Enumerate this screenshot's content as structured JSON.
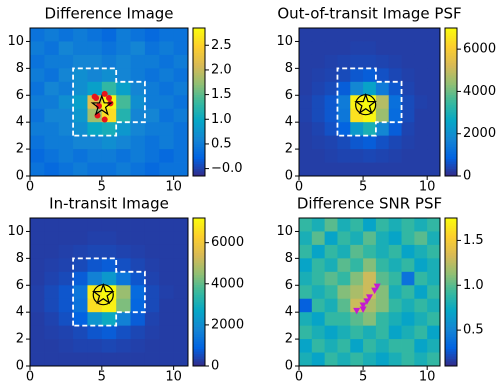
{
  "chart_data": [
    {
      "type": "heatmap",
      "title": "Difference Image",
      "colormap": "parula",
      "xlim": [
        0,
        11
      ],
      "ylim": [
        0,
        11
      ],
      "xticks": [
        0,
        5,
        10
      ],
      "yticks": [
        0,
        2,
        4,
        6,
        8,
        10
      ],
      "clim": [
        -0.15,
        2.85
      ],
      "cticks": [
        {
          "value": 0,
          "label": "−0.0"
        },
        0.5,
        {
          "value": 1,
          "label": "1.0"
        },
        1.5,
        {
          "value": 2,
          "label": "2.0"
        },
        2.5
      ],
      "z": [
        [
          0.4,
          0.5,
          0.4,
          0.5,
          0.4,
          0.3,
          0.5,
          0.4,
          0.3,
          0.4,
          0.4
        ],
        [
          0.5,
          0.4,
          0.6,
          0.5,
          0.5,
          0.4,
          0.5,
          0.6,
          0.4,
          0.5,
          0.4
        ],
        [
          0.4,
          0.5,
          0.5,
          0.6,
          0.6,
          0.5,
          0.6,
          0.5,
          0.5,
          0.4,
          0.5
        ],
        [
          0.5,
          0.4,
          0.6,
          0.7,
          0.6,
          0.7,
          0.6,
          0.5,
          0.4,
          0.5,
          0.4
        ],
        [
          0.4,
          0.6,
          0.5,
          0.7,
          0.9,
          1.3,
          0.9,
          0.6,
          0.5,
          0.4,
          0.5
        ],
        [
          0.5,
          0.5,
          0.7,
          0.9,
          2.2,
          2.8,
          1.4,
          0.7,
          0.5,
          0.5,
          0.4
        ],
        [
          0.4,
          0.6,
          0.6,
          0.8,
          1.8,
          2.6,
          1.2,
          0.6,
          0.6,
          0.4,
          0.5
        ],
        [
          0.5,
          0.5,
          0.6,
          0.7,
          1.0,
          1.1,
          0.8,
          0.6,
          0.5,
          0.5,
          0.4
        ],
        [
          0.4,
          0.5,
          0.5,
          0.6,
          0.6,
          0.7,
          0.6,
          0.5,
          0.4,
          0.5,
          0.4
        ],
        [
          0.3,
          0.4,
          0.5,
          0.4,
          0.5,
          0.5,
          0.4,
          0.5,
          0.4,
          0.3,
          0.4
        ],
        [
          0.4,
          0.3,
          0.4,
          0.5,
          0.4,
          0.4,
          0.5,
          0.4,
          0.3,
          0.4,
          0.4
        ]
      ],
      "aperture": {
        "x": [
          3,
          3,
          6,
          6,
          8,
          8,
          6,
          6,
          3
        ],
        "y": [
          3,
          8,
          8,
          7,
          7,
          4,
          4,
          3,
          3
        ]
      },
      "points": {
        "x": [
          4.6,
          5.2,
          4.8,
          5.6,
          4.7,
          5.2,
          5.5,
          4.5
        ],
        "y": [
          5.8,
          6.1,
          5.2,
          5.4,
          4.5,
          4.2,
          5.8,
          5.9
        ],
        "color": "#e8141b",
        "marker": "circle"
      },
      "star": {
        "x": 5,
        "y": 5.2
      }
    },
    {
      "type": "heatmap",
      "title": "Out-of-transit Image PSF",
      "colormap": "parula",
      "xlim": [
        0,
        11
      ],
      "ylim": [
        0,
        11
      ],
      "xticks": [
        0,
        5,
        10
      ],
      "yticks": [
        0,
        2,
        4,
        6,
        8,
        10
      ],
      "clim": [
        0,
        7000
      ],
      "cticks": [
        0,
        2000,
        4000,
        6000
      ],
      "z": [
        [
          300,
          300,
          300,
          300,
          300,
          300,
          300,
          300,
          300,
          300,
          300
        ],
        [
          300,
          300,
          300,
          300,
          350,
          350,
          300,
          300,
          300,
          300,
          300
        ],
        [
          300,
          300,
          350,
          400,
          450,
          450,
          400,
          350,
          300,
          300,
          300
        ],
        [
          300,
          350,
          400,
          500,
          700,
          800,
          600,
          450,
          350,
          300,
          300
        ],
        [
          300,
          400,
          500,
          800,
          1800,
          2500,
          1500,
          700,
          400,
          300,
          300
        ],
        [
          350,
          500,
          700,
          1500,
          6800,
          7000,
          4800,
          1200,
          500,
          350,
          300
        ],
        [
          350,
          500,
          700,
          1400,
          6500,
          6900,
          4500,
          1100,
          500,
          300,
          300
        ],
        [
          300,
          400,
          600,
          900,
          2300,
          3000,
          1800,
          800,
          400,
          300,
          300
        ],
        [
          300,
          350,
          400,
          500,
          700,
          800,
          600,
          450,
          350,
          300,
          300
        ],
        [
          300,
          300,
          350,
          400,
          400,
          450,
          400,
          350,
          300,
          300,
          300
        ],
        [
          300,
          300,
          300,
          300,
          300,
          300,
          300,
          300,
          300,
          300,
          300
        ]
      ],
      "aperture": {
        "x": [
          3,
          3,
          6,
          6,
          8,
          8,
          6,
          6,
          3
        ],
        "y": [
          3,
          8,
          8,
          7,
          7,
          4,
          4,
          3,
          3
        ]
      },
      "star": {
        "x": 5.2,
        "y": 5.3
      }
    },
    {
      "type": "heatmap",
      "title": "In-transit Image",
      "colormap": "parula",
      "xlim": [
        0,
        11
      ],
      "ylim": [
        0,
        11
      ],
      "xticks": [
        0,
        5,
        10
      ],
      "yticks": [
        0,
        2,
        4,
        6,
        8,
        10
      ],
      "clim": [
        0,
        7200
      ],
      "cticks": [
        0,
        2000,
        4000,
        6000
      ],
      "z": [
        [
          300,
          300,
          300,
          300,
          300,
          300,
          300,
          300,
          300,
          300,
          300
        ],
        [
          300,
          300,
          300,
          300,
          350,
          350,
          300,
          300,
          300,
          300,
          300
        ],
        [
          300,
          300,
          350,
          400,
          450,
          450,
          400,
          350,
          300,
          300,
          300
        ],
        [
          300,
          350,
          400,
          500,
          700,
          800,
          600,
          450,
          350,
          300,
          300
        ],
        [
          300,
          400,
          500,
          800,
          1700,
          2300,
          1400,
          700,
          400,
          300,
          300
        ],
        [
          350,
          500,
          700,
          1400,
          6900,
          7200,
          4600,
          1100,
          500,
          350,
          300
        ],
        [
          350,
          500,
          700,
          1300,
          6600,
          7000,
          4300,
          1000,
          500,
          300,
          300
        ],
        [
          300,
          400,
          600,
          900,
          2200,
          2800,
          1700,
          800,
          400,
          300,
          300
        ],
        [
          300,
          350,
          400,
          500,
          700,
          800,
          600,
          450,
          350,
          300,
          300
        ],
        [
          300,
          300,
          350,
          400,
          400,
          450,
          400,
          350,
          300,
          300,
          300
        ],
        [
          300,
          300,
          300,
          300,
          300,
          300,
          300,
          300,
          300,
          300,
          300
        ]
      ],
      "aperture": {
        "x": [
          3,
          3,
          6,
          6,
          8,
          8,
          6,
          6,
          3
        ],
        "y": [
          3,
          8,
          8,
          7,
          7,
          4,
          4,
          3,
          3
        ]
      },
      "star": {
        "x": 5.1,
        "y": 5.3
      }
    },
    {
      "type": "heatmap",
      "title": "Difference SNR PSF",
      "colormap": "parula",
      "xlim": [
        0,
        11
      ],
      "ylim": [
        0,
        11
      ],
      "xticks": [
        0,
        5,
        10
      ],
      "yticks": [
        0,
        2,
        4,
        6,
        8,
        10
      ],
      "clim": [
        0.1,
        1.75
      ],
      "cticks": [
        0.5,
        {
          "value": 1,
          "label": "1.0"
        },
        1.5
      ],
      "z": [
        [
          0.9,
          0.8,
          1.0,
          0.8,
          0.9,
          0.7,
          0.9,
          0.8,
          0.9,
          0.8,
          0.9
        ],
        [
          0.8,
          1.0,
          0.7,
          0.9,
          0.8,
          1.0,
          0.8,
          0.7,
          0.9,
          1.0,
          0.8
        ],
        [
          0.9,
          0.7,
          0.9,
          0.8,
          1.0,
          0.9,
          0.8,
          0.9,
          0.7,
          0.8,
          0.9
        ],
        [
          0.7,
          0.9,
          0.8,
          1.0,
          0.9,
          1.1,
          0.9,
          0.8,
          0.9,
          0.7,
          0.8
        ],
        [
          0.8,
          0.9,
          1.0,
          0.9,
          1.1,
          1.3,
          1.0,
          0.9,
          0.4,
          0.9,
          0.8
        ],
        [
          0.9,
          0.8,
          0.9,
          1.1,
          1.2,
          1.3,
          1.1,
          0.8,
          0.9,
          0.7,
          0.9
        ],
        [
          0.3,
          0.9,
          0.8,
          1.0,
          1.3,
          1.2,
          1.1,
          0.9,
          0.8,
          0.9,
          0.8
        ],
        [
          0.8,
          0.7,
          0.9,
          0.9,
          1.0,
          1.1,
          0.9,
          0.8,
          0.7,
          0.8,
          0.9
        ],
        [
          0.9,
          0.8,
          0.7,
          0.8,
          0.9,
          0.8,
          0.9,
          0.7,
          0.8,
          0.9,
          0.7
        ],
        [
          0.7,
          0.9,
          0.8,
          0.9,
          0.7,
          0.9,
          0.8,
          0.9,
          0.9,
          0.7,
          0.8
        ],
        [
          0.8,
          0.7,
          0.9,
          0.8,
          0.9,
          0.8,
          0.7,
          0.8,
          0.9,
          0.8,
          0.9
        ]
      ],
      "points": {
        "x": [
          4.5,
          5.0,
          5.3,
          5.5,
          5.9,
          6.1,
          5.0
        ],
        "y": [
          4.1,
          4.2,
          4.8,
          5.1,
          5.6,
          5.9,
          4.5
        ],
        "color": "#c41ad0",
        "marker": "triangle"
      }
    }
  ]
}
